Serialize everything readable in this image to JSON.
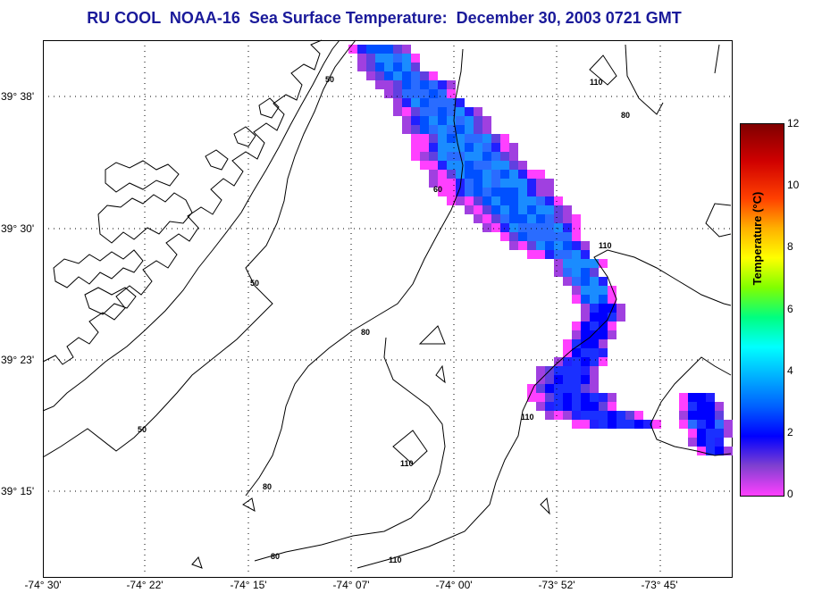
{
  "title": "RU COOL  NOAA-16  Sea Surface Temperature:  December 30, 2003 0721 GMT",
  "lat_labels": [
    "39° 38'",
    "39° 30'",
    "39° 23'",
    "39° 15'"
  ],
  "lon_labels": [
    "-74° 30'",
    "-74° 22'",
    "-74° 15'",
    "-74° 07'",
    "-74° 00'",
    "-73° 52'",
    "-73° 45'"
  ],
  "colorbar": {
    "label": "Temperature (°C)",
    "ticks": [
      "12",
      "10",
      "8",
      "6",
      "4",
      "2",
      "0"
    ]
  },
  "contour_labels": [
    "50",
    "50",
    "50",
    "60",
    "80",
    "80",
    "80",
    "80",
    "110",
    "110",
    "110",
    "110",
    "110"
  ],
  "colors": {
    "title": "#1a1a9a",
    "coast": "#000000",
    "grid": "#000000",
    "sst_low": "#ff40ff",
    "sst_mid": "#0000ff",
    "sst_high": "#00b0ff"
  }
}
